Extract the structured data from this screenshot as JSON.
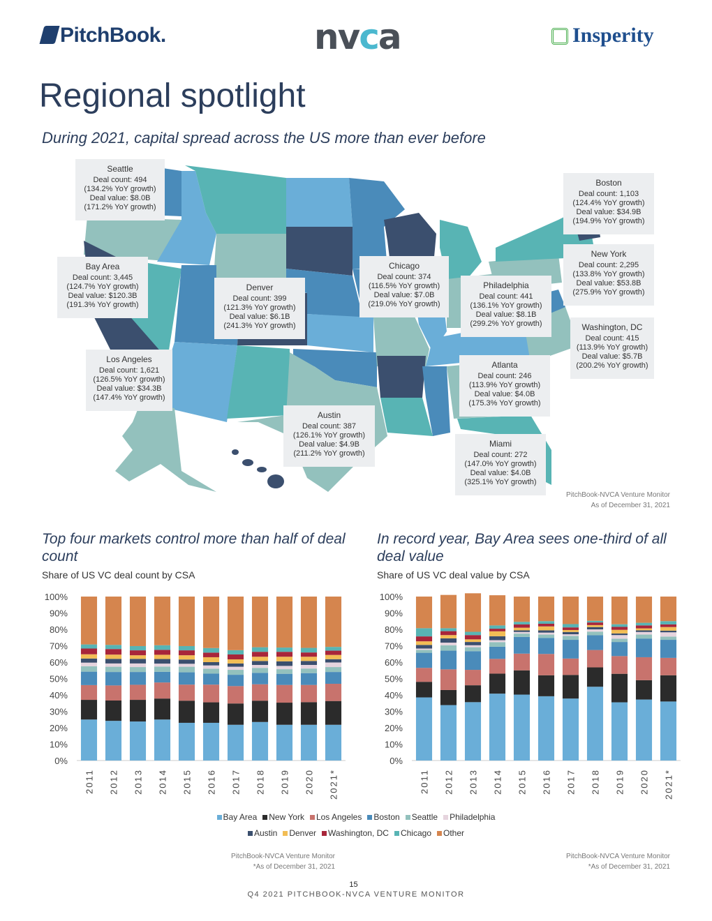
{
  "header": {
    "logos": {
      "pitchbook": "PitchBook.",
      "nvca_left": "nv",
      "nvca_mid": "c",
      "nvca_right": "a",
      "insperity": "Insperity"
    },
    "title": "Regional spotlight",
    "subtitle": "During 2021, capital spread across the US more than ever before"
  },
  "map": {
    "colors": {
      "dark": "#3b4f6e",
      "mid_blue": "#4a8bba",
      "light_blue": "#6aaed8",
      "teal": "#58b4b4",
      "sage": "#93c1bd"
    },
    "callouts": [
      {
        "name": "Seattle",
        "count": "Deal count: 494",
        "count_growth": "(134.2% YoY growth)",
        "value": "Deal value: $8.0B",
        "value_growth": "(171.2% YoY growth)"
      },
      {
        "name": "Bay Area",
        "count": "Deal count: 3,445",
        "count_growth": "(124.7% YoY growth)",
        "value": "Deal value: $120.3B",
        "value_growth": "(191.3% YoY growth)"
      },
      {
        "name": "Denver",
        "count": "Deal count: 399",
        "count_growth": "(121.3% YoY growth)",
        "value": "Deal value: $6.1B",
        "value_growth": "(241.3% YoY growth)"
      },
      {
        "name": "Chicago",
        "count": "Deal count: 374",
        "count_growth": "(116.5% YoY growth)",
        "value": "Deal value: $7.0B",
        "value_growth": "(219.0% YoY growth)"
      },
      {
        "name": "Philadelphia",
        "count": "Deal count: 441",
        "count_growth": "(136.1% YoY growth)",
        "value": "Deal value: $8.1B",
        "value_growth": "(299.2% YoY growth)"
      },
      {
        "name": "Boston",
        "count": "Deal count: 1,103",
        "count_growth": "(124.4% YoY growth)",
        "value": "Deal value: $34.9B",
        "value_growth": "(194.9% YoY growth)"
      },
      {
        "name": "New York",
        "count": "Deal count: 2,295",
        "count_growth": "(133.8% YoY growth)",
        "value": "Deal value: $53.8B",
        "value_growth": "(275.9% YoY growth)"
      },
      {
        "name": "Washington, DC",
        "count": "Deal count: 415",
        "count_growth": "(113.9% YoY growth)",
        "value": "Deal value: $5.7B",
        "value_growth": "(200.2% YoY growth)"
      },
      {
        "name": "Los Angeles",
        "count": "Deal count: 1,621",
        "count_growth": "(126.5% YoY growth)",
        "value": "Deal value: $34.3B",
        "value_growth": "(147.4% YoY growth)"
      },
      {
        "name": "Atlanta",
        "count": "Deal count: 246",
        "count_growth": "(113.9% YoY growth)",
        "value": "Deal value: $4.0B",
        "value_growth": "(175.3% YoY growth)"
      },
      {
        "name": "Austin",
        "count": "Deal count: 387",
        "count_growth": "(126.1% YoY growth)",
        "value": "Deal value: $4.9B",
        "value_growth": "(211.2% YoY growth)"
      },
      {
        "name": "Miami",
        "count": "Deal count: 272",
        "count_growth": "(147.0% YoY growth)",
        "value": "Deal value: $4.0B",
        "value_growth": "(325.1% YoY growth)"
      }
    ],
    "source": "PitchBook-NVCA Venture Monitor",
    "asof": "As of December 31, 2021"
  },
  "chart_data": [
    {
      "type": "bar",
      "stacked": true,
      "title": "Top four markets control more than half of deal count",
      "subtitle": "Share of US VC deal count by CSA",
      "xlabel": "",
      "ylabel": "",
      "ylim": [
        0,
        100
      ],
      "yticks": [
        "0%",
        "10%",
        "20%",
        "30%",
        "40%",
        "50%",
        "60%",
        "70%",
        "80%",
        "90%",
        "100%"
      ],
      "categories": [
        "2011",
        "2012",
        "2013",
        "2014",
        "2015",
        "2016",
        "2017",
        "2018",
        "2019",
        "2020",
        "2021*"
      ],
      "series": [
        {
          "name": "Bay Area",
          "color": "#6aaed8",
          "values": [
            25.0,
            24.2,
            23.8,
            25.0,
            23.0,
            23.0,
            21.8,
            23.5,
            21.8,
            21.8,
            21.8
          ]
        },
        {
          "name": "New York",
          "color": "#2b2b2b",
          "values": [
            12.0,
            12.4,
            13.2,
            12.8,
            13.5,
            12.5,
            13.0,
            13.0,
            13.5,
            13.8,
            14.5
          ]
        },
        {
          "name": "Los Angeles",
          "color": "#c8736d",
          "values": [
            9.0,
            9.2,
            9.2,
            9.8,
            9.8,
            10.8,
            10.6,
            10.0,
            10.8,
            10.5,
            10.5
          ]
        },
        {
          "name": "Boston",
          "color": "#4a8bba",
          "values": [
            8.2,
            8.2,
            7.8,
            6.5,
            7.5,
            6.7,
            6.9,
            7.0,
            6.8,
            7.2,
            7.2
          ]
        },
        {
          "name": "Seattle",
          "color": "#93c1bd",
          "values": [
            3.3,
            3.2,
            3.0,
            3.2,
            3.4,
            3.0,
            3.0,
            3.0,
            2.8,
            2.8,
            3.0
          ]
        },
        {
          "name": "Philadelphia",
          "color": "#e6d4de",
          "values": [
            2.2,
            2.0,
            2.2,
            1.8,
            1.8,
            2.0,
            1.9,
            1.8,
            2.0,
            2.2,
            2.8
          ]
        },
        {
          "name": "Austin",
          "color": "#3b4f6e",
          "values": [
            2.5,
            2.8,
            2.8,
            2.8,
            2.6,
            2.0,
            2.0,
            2.4,
            2.8,
            2.4,
            2.0
          ]
        },
        {
          "name": "Denver",
          "color": "#f2bd55",
          "values": [
            2.6,
            2.6,
            2.2,
            2.6,
            2.6,
            3.0,
            2.5,
            2.6,
            2.8,
            2.6,
            2.6
          ]
        },
        {
          "name": "Washington, DC",
          "color": "#a8263a",
          "values": [
            3.5,
            3.4,
            3.0,
            3.0,
            3.0,
            2.8,
            3.0,
            3.0,
            3.0,
            2.6,
            2.6
          ]
        },
        {
          "name": "Chicago",
          "color": "#58b4b4",
          "values": [
            2.5,
            2.5,
            2.6,
            2.8,
            2.6,
            2.8,
            2.6,
            2.8,
            2.6,
            2.8,
            2.3
          ]
        },
        {
          "name": "Other",
          "color": "#d5854e",
          "values": [
            29.2,
            29.5,
            30.2,
            29.7,
            30.2,
            31.4,
            32.7,
            30.9,
            31.1,
            31.3,
            30.7
          ]
        }
      ]
    },
    {
      "type": "bar",
      "stacked": true,
      "title": "In record year, Bay Area sees one-third of all deal value",
      "subtitle": "Share of US VC deal value by CSA",
      "xlabel": "",
      "ylabel": "",
      "ylim": [
        0,
        100
      ],
      "yticks": [
        "0%",
        "10%",
        "20%",
        "30%",
        "40%",
        "50%",
        "60%",
        "70%",
        "80%",
        "90%",
        "100%"
      ],
      "categories": [
        "2011",
        "2012",
        "2013",
        "2014",
        "2015",
        "2016",
        "2017",
        "2018",
        "2019",
        "2020",
        "2021*"
      ],
      "series": [
        {
          "name": "Bay Area",
          "color": "#6aaed8",
          "values": [
            38.5,
            33.8,
            35.6,
            40.8,
            40.2,
            39.2,
            37.8,
            45.0,
            35.5,
            37.2,
            36.0
          ]
        },
        {
          "name": "New York",
          "color": "#2b2b2b",
          "values": [
            9.5,
            9.2,
            10.3,
            12.2,
            14.8,
            12.8,
            14.4,
            11.8,
            17.4,
            11.8,
            16.0
          ]
        },
        {
          "name": "Los Angeles",
          "color": "#c8736d",
          "values": [
            8.5,
            12.6,
            9.4,
            9.0,
            10.2,
            13.0,
            10.0,
            10.6,
            10.8,
            14.0,
            10.6
          ]
        },
        {
          "name": "Boston",
          "color": "#4a8bba",
          "values": [
            9.2,
            11.4,
            11.4,
            7.4,
            10.2,
            9.8,
            11.4,
            9.0,
            8.6,
            11.4,
            11.0
          ]
        },
        {
          "name": "Seattle",
          "color": "#93c1bd",
          "values": [
            1.8,
            3.3,
            2.4,
            2.8,
            2.0,
            2.0,
            2.4,
            2.2,
            2.0,
            2.4,
            2.0
          ]
        },
        {
          "name": "Philadelphia",
          "color": "#e6d4de",
          "values": [
            0.8,
            1.6,
            1.2,
            1.2,
            1.0,
            1.2,
            1.0,
            1.4,
            2.2,
            1.6,
            2.6
          ]
        },
        {
          "name": "Austin",
          "color": "#3b4f6e",
          "values": [
            2.2,
            2.6,
            2.0,
            2.4,
            1.0,
            1.4,
            1.4,
            1.4,
            1.0,
            1.0,
            1.0
          ]
        },
        {
          "name": "Denver",
          "color": "#f2bd55",
          "values": [
            2.2,
            2.0,
            1.6,
            3.0,
            1.6,
            2.4,
            1.2,
            1.2,
            2.2,
            1.2,
            2.2
          ]
        },
        {
          "name": "Washington, DC",
          "color": "#a8263a",
          "values": [
            3.0,
            2.4,
            2.6,
            1.6,
            2.0,
            1.6,
            1.6,
            1.6,
            1.8,
            1.8,
            1.6
          ]
        },
        {
          "name": "Chicago",
          "color": "#58b4b4",
          "values": [
            5.0,
            1.8,
            2.0,
            2.0,
            1.6,
            1.6,
            2.0,
            1.0,
            1.6,
            1.6,
            2.0
          ]
        },
        {
          "name": "Other",
          "color": "#d5854e",
          "values": [
            19.3,
            20.3,
            23.5,
            18.4,
            15.4,
            15.0,
            16.8,
            14.8,
            16.9,
            16.0,
            15.0
          ]
        }
      ]
    }
  ],
  "charts_text": {
    "left_source": "PitchBook-NVCA Venture Monitor",
    "left_asof": "*As of December 31, 2021",
    "right_source": "PitchBook-NVCA Venture Monitor",
    "right_asof": "*As of December 31, 2021"
  },
  "legend": {
    "row1": [
      {
        "name": "Bay Area",
        "color": "#6aaed8"
      },
      {
        "name": "New York",
        "color": "#2b2b2b"
      },
      {
        "name": "Los Angeles",
        "color": "#c8736d"
      },
      {
        "name": "Boston",
        "color": "#4a8bba"
      },
      {
        "name": "Seattle",
        "color": "#93c1bd"
      },
      {
        "name": "Philadelphia",
        "color": "#e6d4de"
      }
    ],
    "row2": [
      {
        "name": "Austin",
        "color": "#3b4f6e"
      },
      {
        "name": "Denver",
        "color": "#f2bd55"
      },
      {
        "name": "Washington, DC",
        "color": "#a8263a"
      },
      {
        "name": "Chicago",
        "color": "#58b4b4"
      },
      {
        "name": "Other",
        "color": "#d5854e"
      }
    ]
  },
  "footer": {
    "page": "15",
    "publication": "Q4 2021 PITCHBOOK-NVCA VENTURE MONITOR"
  }
}
